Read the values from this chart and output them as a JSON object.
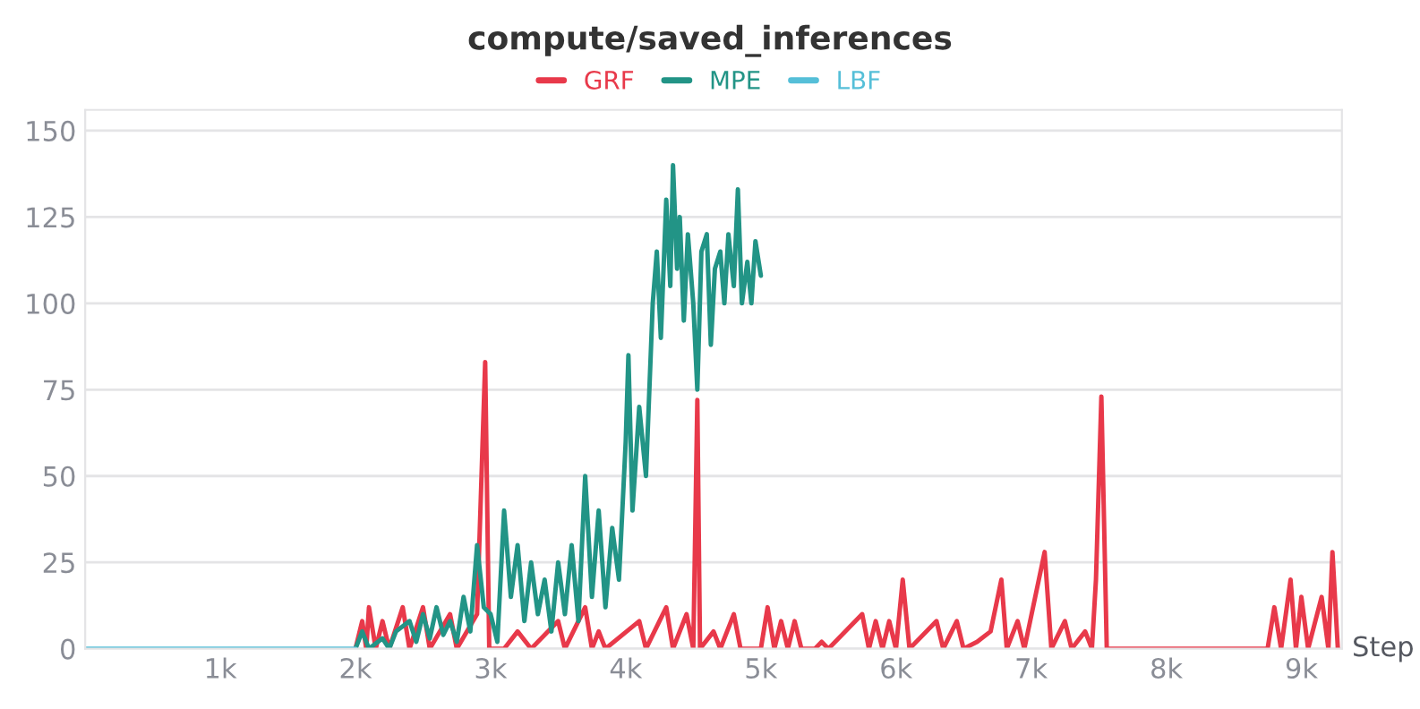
{
  "chart_data": {
    "type": "line",
    "title": "compute/saved_inferences",
    "xlabel": "Step",
    "xlim": [
      0,
      9300
    ],
    "ylim": [
      0,
      156
    ],
    "xticks": [
      {
        "value": 1000,
        "label": "1k"
      },
      {
        "value": 2000,
        "label": "2k"
      },
      {
        "value": 3000,
        "label": "3k"
      },
      {
        "value": 4000,
        "label": "4k"
      },
      {
        "value": 5000,
        "label": "5k"
      },
      {
        "value": 6000,
        "label": "6k"
      },
      {
        "value": 7000,
        "label": "7k"
      },
      {
        "value": 8000,
        "label": "8k"
      },
      {
        "value": 9000,
        "label": "9k"
      }
    ],
    "yticks": [
      0,
      25,
      50,
      75,
      100,
      125,
      150
    ],
    "grid": "y",
    "legend": "top",
    "series": [
      {
        "name": "GRF",
        "color": "#e8394a",
        "x": [
          2000,
          2050,
          2080,
          2100,
          2150,
          2200,
          2250,
          2350,
          2400,
          2500,
          2550,
          2700,
          2750,
          2900,
          2960,
          2990,
          3100,
          3200,
          3300,
          3500,
          3550,
          3700,
          3750,
          3800,
          3850,
          4100,
          4150,
          4300,
          4350,
          4450,
          4500,
          4530,
          4550,
          4650,
          4700,
          4800,
          4850,
          5000,
          5050,
          5100,
          5150,
          5200,
          5250,
          5300,
          5400,
          5450,
          5500,
          5750,
          5800,
          5850,
          5900,
          5950,
          6000,
          6050,
          6100,
          6300,
          6350,
          6450,
          6500,
          6600,
          6700,
          6780,
          6820,
          6900,
          6950,
          7100,
          7150,
          7250,
          7300,
          7400,
          7450,
          7480,
          7520,
          7560,
          7600,
          8750,
          8800,
          8850,
          8920,
          8960,
          9000,
          9050,
          9150,
          9200,
          9230,
          9270
        ],
        "values": [
          0,
          8,
          0,
          12,
          0,
          8,
          0,
          12,
          0,
          12,
          0,
          10,
          0,
          10,
          83,
          0,
          0,
          5,
          0,
          8,
          0,
          12,
          0,
          5,
          0,
          8,
          0,
          12,
          0,
          10,
          0,
          72,
          0,
          5,
          0,
          10,
          0,
          0,
          12,
          0,
          8,
          0,
          8,
          0,
          0,
          2,
          0,
          10,
          0,
          8,
          0,
          8,
          0,
          20,
          0,
          8,
          0,
          8,
          0,
          2,
          5,
          20,
          0,
          8,
          0,
          28,
          0,
          8,
          0,
          5,
          0,
          20,
          73,
          0,
          0,
          0,
          12,
          0,
          20,
          0,
          15,
          0,
          15,
          0,
          28,
          0
        ]
      },
      {
        "name": "MPE",
        "color": "#229486",
        "x": [
          2000,
          2050,
          2100,
          2200,
          2250,
          2300,
          2400,
          2450,
          2500,
          2550,
          2600,
          2650,
          2700,
          2750,
          2800,
          2850,
          2900,
          2950,
          3000,
          3050,
          3100,
          3150,
          3200,
          3250,
          3300,
          3350,
          3400,
          3450,
          3500,
          3550,
          3600,
          3650,
          3700,
          3750,
          3800,
          3850,
          3900,
          3950,
          4000,
          4020,
          4050,
          4100,
          4150,
          4200,
          4230,
          4260,
          4300,
          4330,
          4350,
          4380,
          4400,
          4430,
          4460,
          4500,
          4530,
          4560,
          4600,
          4630,
          4660,
          4700,
          4730,
          4760,
          4800,
          4830,
          4860,
          4900,
          4930,
          4960,
          5000
        ],
        "values": [
          0,
          5,
          0,
          3,
          0,
          5,
          8,
          2,
          10,
          3,
          12,
          4,
          8,
          2,
          15,
          5,
          30,
          12,
          10,
          2,
          40,
          15,
          30,
          8,
          25,
          10,
          20,
          5,
          25,
          10,
          30,
          8,
          50,
          15,
          40,
          12,
          35,
          20,
          60,
          85,
          40,
          70,
          50,
          100,
          115,
          90,
          130,
          105,
          140,
          110,
          125,
          95,
          120,
          100,
          75,
          115,
          120,
          88,
          110,
          115,
          100,
          120,
          105,
          133,
          100,
          112,
          100,
          118,
          108
        ]
      },
      {
        "name": "LBF",
        "color": "#55bfd8",
        "x": [
          0,
          500,
          1000,
          1500,
          2000
        ],
        "values": [
          0,
          0,
          0,
          0,
          0
        ]
      }
    ]
  }
}
